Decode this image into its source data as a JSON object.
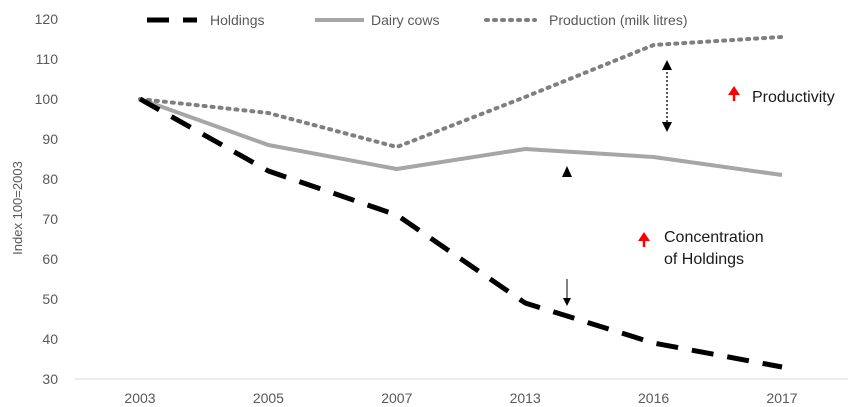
{
  "chart_data": {
    "type": "line",
    "categories": [
      "2003",
      "2005",
      "2007",
      "2013",
      "2016",
      "2017"
    ],
    "series": [
      {
        "name": "Holdings",
        "values": [
          100,
          82,
          71,
          49,
          39,
          33
        ],
        "color": "#000000",
        "style": "dashed"
      },
      {
        "name": "Dairy cows",
        "values": [
          100,
          88.5,
          82.5,
          87.5,
          85.5,
          81
        ],
        "color": "#a6a6a6",
        "style": "solid"
      },
      {
        "name": "Production (milk litres)",
        "values": [
          100,
          96.5,
          88,
          100.5,
          113.5,
          115.5
        ],
        "color": "#7f7f7f",
        "style": "dotted"
      }
    ],
    "ylabel": "Index 100=2003",
    "ylim": [
      30,
      120
    ],
    "yticks": [
      "30",
      "40",
      "50",
      "60",
      "70",
      "80",
      "90",
      "100",
      "110",
      "120"
    ],
    "grid": false,
    "legend": "top",
    "annotations": [
      {
        "text": "Productivity",
        "arrow_color": "#ff0000"
      },
      {
        "text_lines": [
          "Concentration",
          "of Holdings"
        ],
        "arrow_color": "#ff0000"
      }
    ]
  }
}
